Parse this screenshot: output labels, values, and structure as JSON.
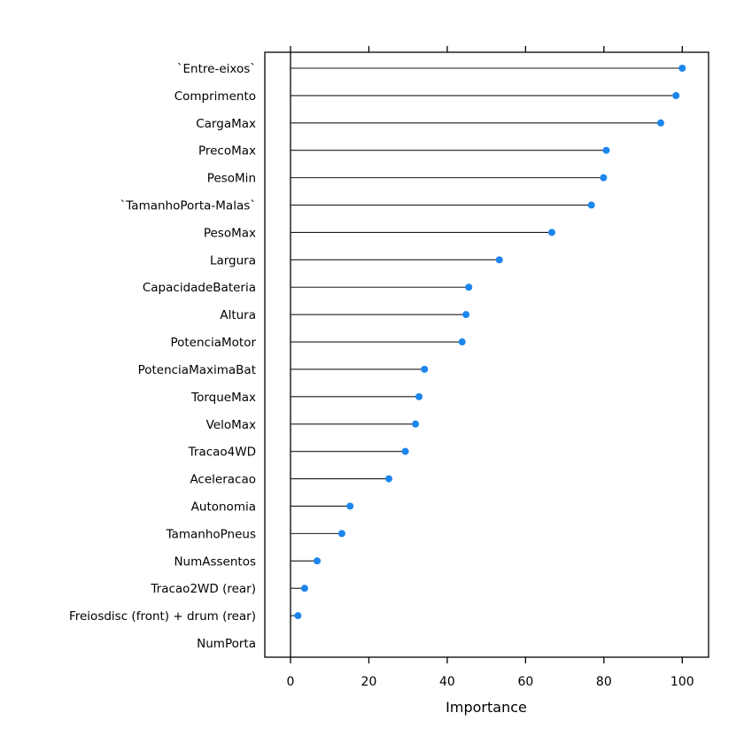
{
  "chart_data": {
    "type": "scatter",
    "style": "lollipop-dot-chart",
    "title": "",
    "xlabel": "Importance",
    "ylabel": "",
    "xlim": [
      -7,
      110
    ],
    "x_ticks": [
      0,
      20,
      40,
      60,
      80,
      100
    ],
    "grid": "off",
    "legend": "none",
    "categories": [
      "`Entre-eixos`",
      "Comprimento",
      "CargaMax",
      "PrecoMax",
      "PesoMin",
      "`TamanhoPorta-Malas`",
      "PesoMax",
      "Largura",
      "CapacidadeBateria",
      "Altura",
      "PotenciaMotor",
      "PotenciaMaximaBat",
      "TorqueMax",
      "VeloMax",
      "Tracao4WD",
      "Aceleracao",
      "Autonomia",
      "TamanhoPneus",
      "NumAssentos",
      "Tracao2WD (rear)",
      "Freiosdisc (front) + drum (rear)",
      "NumPorta"
    ],
    "values": [
      100,
      98.4,
      94.5,
      80.6,
      79.9,
      76.8,
      66.7,
      53.3,
      45.5,
      44.8,
      43.8,
      34.2,
      32.8,
      31.9,
      29.3,
      25.1,
      15.2,
      13.1,
      6.8,
      3.6,
      1.9,
      0
    ],
    "colors": {
      "point": "#1C86EE",
      "stem": "#1A1A1A",
      "frame": "#000000",
      "text": "#000000",
      "background": "#FFFFFF"
    }
  }
}
